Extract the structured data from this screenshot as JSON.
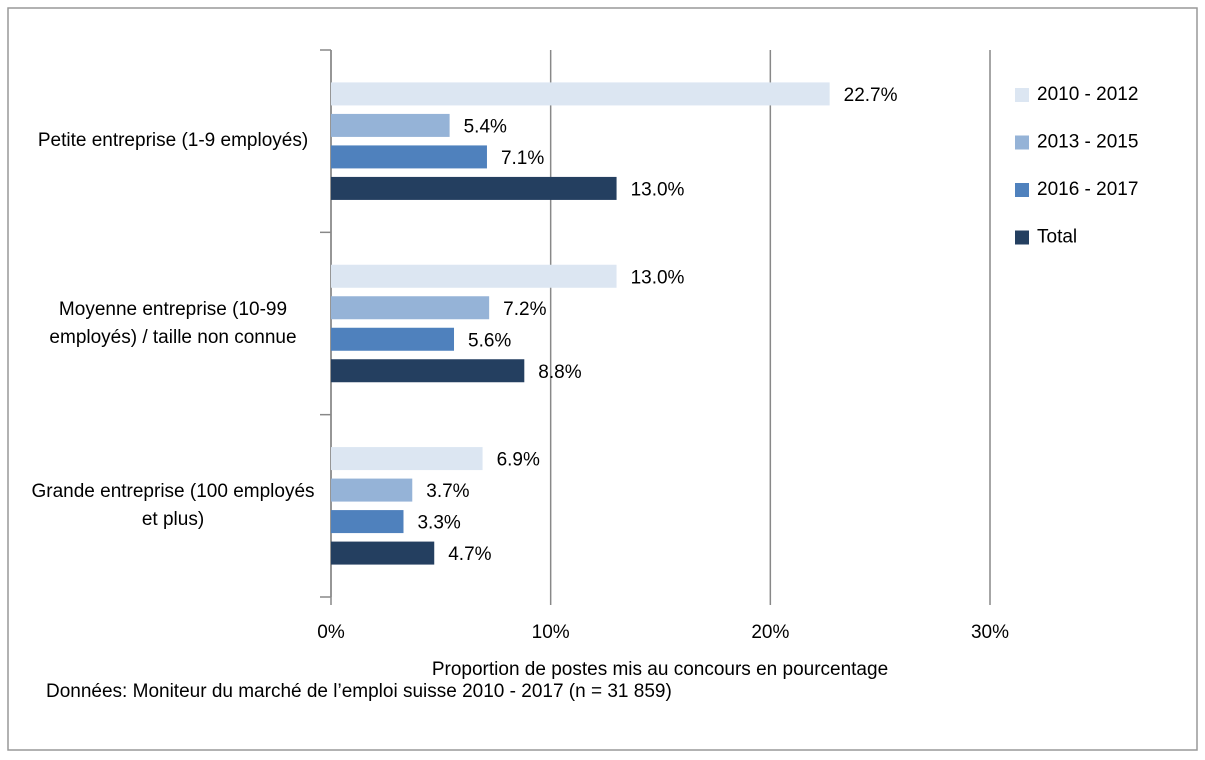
{
  "chart_data": {
    "type": "bar",
    "orientation": "horizontal",
    "categories": [
      "Petite entreprise (1-9 employés)",
      "Moyenne entreprise (10-99 employés) / taille non connue",
      "Grande entreprise (100 employés et plus)"
    ],
    "series": [
      {
        "name": "2010 - 2012",
        "color": "#dce6f2",
        "values": [
          22.7,
          13.0,
          6.9
        ],
        "value_labels": [
          "22.7%",
          "13.0%",
          "6.9%"
        ]
      },
      {
        "name": "2013 - 2015",
        "color": "#95b3d7",
        "values": [
          5.4,
          7.2,
          3.7
        ],
        "value_labels": [
          "5.4%",
          "7.2%",
          "3.7%"
        ]
      },
      {
        "name": "2016 - 2017",
        "color": "#4f81bd",
        "values": [
          7.1,
          5.6,
          3.3
        ],
        "value_labels": [
          "7.1%",
          "5.6%",
          "3.3%"
        ]
      },
      {
        "name": "Total",
        "color": "#243f60",
        "values": [
          13.0,
          8.8,
          4.7
        ],
        "value_labels": [
          "13.0%",
          "8.8%",
          "4.7%"
        ]
      }
    ],
    "xlim": [
      0,
      30
    ],
    "xticks": [
      {
        "value": 0,
        "label": "0%"
      },
      {
        "value": 10,
        "label": "10%"
      },
      {
        "value": 20,
        "label": "20%"
      },
      {
        "value": 30,
        "label": "30%"
      }
    ],
    "xlabel": "Proportion de postes mis au concours en pourcentage",
    "note": "Données: Moniteur du marché de l’emploi suisse 2010 - 2017 (n = 31 859)",
    "grid": true,
    "legend": "right"
  }
}
